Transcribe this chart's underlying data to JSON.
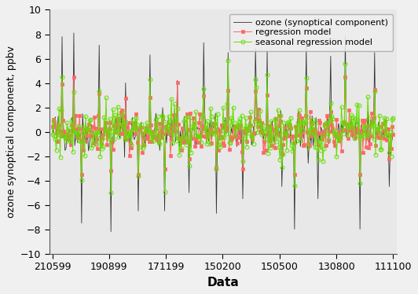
{
  "title": "",
  "xlabel": "Data",
  "ylabel": "ozone synoptical component, ppbv",
  "ylim": [
    -10,
    10
  ],
  "yticks": [
    -10,
    -8,
    -6,
    -4,
    -2,
    0,
    2,
    4,
    6,
    8,
    10
  ],
  "xtick_labels": [
    "210599",
    "190899",
    "171199",
    "150200",
    "150500",
    "130800",
    "111100"
  ],
  "n_points": 350,
  "ozone_color": "#333333",
  "regression_color": "#ff6666",
  "seasonal_color": "#66dd00",
  "legend_labels": [
    "ozone (synoptical component)",
    "regression model",
    "seasonal regression model"
  ],
  "seed": 42,
  "xlabel_fontsize": 11,
  "ylabel_fontsize": 9,
  "legend_fontsize": 8,
  "bg_color": "#e8e8e8",
  "fig_bg_color": "#f0f0f0"
}
